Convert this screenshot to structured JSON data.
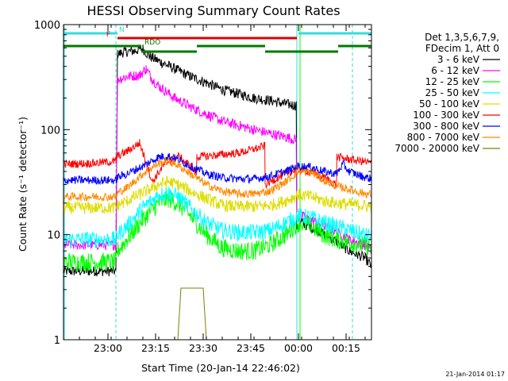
{
  "chart_data": {
    "type": "line",
    "title": "HESSI Observing Summary Count Rates",
    "xlabel": "Start Time (20-Jan-14 22:46:02)",
    "ylabel": "Count Rate (s⁻¹ detector⁻¹)",
    "yscale": "log",
    "ylim": [
      1,
      1000
    ],
    "xlim_minutes": [
      0,
      97
    ],
    "x_ticks": [
      {
        "label": "23:00",
        "t": 14
      },
      {
        "label": "23:15",
        "t": 29
      },
      {
        "label": "23:30",
        "t": 44
      },
      {
        "label": "23:45",
        "t": 59
      },
      {
        "label": "00:00",
        "t": 74
      },
      {
        "label": "00:15",
        "t": 89
      }
    ],
    "y_ticks": [
      {
        "label": "1",
        "v": 1
      },
      {
        "label": "10",
        "v": 10
      },
      {
        "label": "100",
        "v": 100
      },
      {
        "label": "1000",
        "v": 1000
      }
    ],
    "legend_header": [
      "Det 1,3,5,6,7,9,",
      "FDecim 1, Att 0"
    ],
    "legend_position": "right",
    "night_times": [
      16.5,
      73.5,
      91
    ],
    "flag_bars": [
      {
        "label": "N",
        "color": "#33dddd",
        "segments": [
          [
            0,
            17
          ],
          [
            74,
            97
          ]
        ]
      },
      {
        "label": "F",
        "color": "#dd0000",
        "segments": [
          [
            17,
            73.5
          ]
        ]
      },
      {
        "label": "RDO",
        "color": "#007a00",
        "segments": [
          [
            0,
            24.5
          ],
          [
            24.5,
            42
          ],
          [
            42,
            63.5
          ],
          [
            63.5,
            86.5
          ],
          [
            86.5,
            97
          ]
        ]
      }
    ],
    "flag_label_times": {
      "N": 17,
      "F": 15.5,
      "RDO": 25
    },
    "series": [
      {
        "name": "3 - 6 keV",
        "color": "#000000",
        "x": [
          0,
          16.5,
          17,
          19,
          22,
          25,
          27,
          30,
          35,
          40,
          45,
          50,
          55,
          60,
          65,
          70,
          73.3,
          73.5,
          75,
          80,
          85,
          90,
          95,
          97
        ],
        "y": [
          4.5,
          4.5,
          520,
          550,
          560,
          590,
          500,
          450,
          380,
          320,
          280,
          240,
          220,
          200,
          190,
          175,
          170,
          12,
          13,
          11,
          9,
          7,
          6,
          5
        ]
      },
      {
        "name": "6 - 12 keV",
        "color": "#ff00ff",
        "x": [
          0,
          16.5,
          17,
          20,
          24,
          26,
          28,
          30,
          35,
          40,
          45,
          50,
          55,
          60,
          65,
          70,
          73.3,
          73.5,
          75,
          80,
          85,
          90,
          95,
          97
        ],
        "y": [
          8,
          8,
          300,
          320,
          330,
          380,
          300,
          260,
          200,
          165,
          140,
          120,
          110,
          100,
          92,
          85,
          80,
          14,
          15,
          13,
          11,
          9,
          8,
          7
        ]
      },
      {
        "name": "12 - 25 keV",
        "color": "#00ff00",
        "x": [
          0,
          16.5,
          17,
          20,
          25,
          30,
          33,
          36,
          40,
          45,
          50,
          55,
          60,
          65,
          70,
          74,
          78,
          82,
          86,
          90,
          94,
          97
        ],
        "y": [
          5.5,
          5.5,
          7,
          9,
          14,
          20,
          22,
          20,
          15,
          10,
          7.5,
          7,
          7,
          8,
          10,
          13,
          12,
          10,
          9,
          8.5,
          8,
          7.5
        ]
      },
      {
        "name": "25 - 50 keV",
        "color": "#00ffff",
        "x": [
          0,
          16.5,
          17,
          20,
          25,
          30,
          33,
          36,
          40,
          45,
          50,
          55,
          60,
          65,
          70,
          74,
          78,
          82,
          86,
          90,
          94,
          97
        ],
        "y": [
          9,
          9,
          10,
          12,
          18,
          24,
          25,
          23,
          18,
          13,
          11,
          10.5,
          10.5,
          11,
          13,
          15,
          14.5,
          13,
          12,
          11,
          10,
          9.5
        ]
      },
      {
        "name": "50 - 100 keV",
        "color": "#dddd00",
        "x": [
          0,
          16.5,
          17,
          20,
          25,
          30,
          33,
          36,
          40,
          45,
          50,
          55,
          60,
          65,
          70,
          74,
          78,
          82,
          86,
          90,
          94,
          97
        ],
        "y": [
          18,
          18,
          19,
          21,
          25,
          30,
          32,
          30,
          26,
          22,
          19,
          18.5,
          18.5,
          19,
          21,
          24,
          23,
          21,
          20,
          19.5,
          19,
          18.5
        ]
      },
      {
        "name": "100 - 300 keV",
        "color": "#ff0000",
        "x": [
          0,
          10,
          16.5,
          16.6,
          20,
          24,
          28,
          32,
          36,
          40,
          41.9,
          42,
          45,
          50,
          55,
          60,
          63.4,
          63.5,
          66,
          70,
          74,
          78,
          82,
          86,
          86.1,
          90,
          94,
          97
        ],
        "y": [
          47,
          48,
          50,
          55,
          62,
          75,
          32,
          48,
          56,
          45,
          38,
          55,
          56,
          58,
          60,
          65,
          70,
          30,
          33,
          38,
          42,
          40,
          35,
          30,
          55,
          52,
          50,
          48
        ]
      },
      {
        "name": "300 - 800 keV",
        "color": "#0000ff",
        "x": [
          0,
          16.5,
          17,
          20,
          25,
          30,
          33,
          36,
          40,
          45,
          50,
          55,
          60,
          65,
          70,
          74,
          78,
          82,
          86,
          88,
          90,
          94,
          97
        ],
        "y": [
          33,
          33,
          35,
          38,
          45,
          55,
          56,
          52,
          45,
          38,
          35,
          34,
          34,
          36,
          40,
          45,
          44,
          40,
          38,
          47,
          40,
          36,
          34
        ]
      },
      {
        "name": "800 - 7000 keV",
        "color": "#ff8800",
        "x": [
          0,
          16.5,
          17,
          20,
          25,
          30,
          33,
          36,
          40,
          45,
          50,
          55,
          60,
          65,
          70,
          74,
          78,
          82,
          86,
          90,
          94,
          97
        ],
        "y": [
          23,
          23,
          25,
          28,
          38,
          48,
          50,
          46,
          38,
          30,
          26,
          24.5,
          24.5,
          26,
          32,
          40,
          39,
          33,
          29,
          27,
          25,
          24
        ]
      },
      {
        "name": "7000 - 20000 keV",
        "color": "#808000",
        "x": [
          0,
          36,
          37,
          44,
          45,
          97
        ],
        "y": [
          1,
          1,
          3.1,
          3.1,
          1,
          1
        ]
      }
    ]
  },
  "footer": {
    "timestamp": "21-Jan-2014 01:17"
  }
}
